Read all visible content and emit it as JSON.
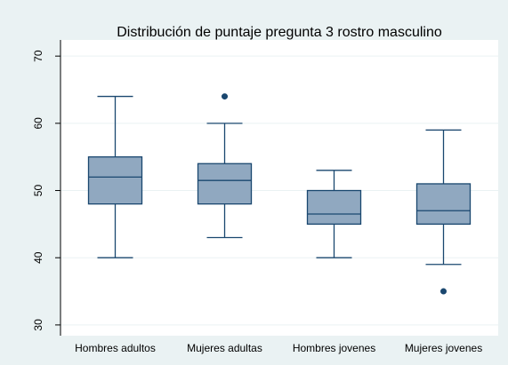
{
  "chart_data": {
    "type": "box",
    "title": "Distribución de puntaje pregunta 3 rostro masculino",
    "categories": [
      "Hombres adultos",
      "Mujeres adultas",
      "Hombres jovenes",
      "Mujeres jovenes"
    ],
    "boxes": [
      {
        "min": 40,
        "q1": 48,
        "median": 52,
        "q3": 55,
        "max": 64,
        "outliers": []
      },
      {
        "min": 43,
        "q1": 48,
        "median": 51.5,
        "q3": 54,
        "max": 60,
        "outliers": [
          64
        ]
      },
      {
        "min": 40,
        "q1": 45,
        "median": 46.5,
        "q3": 50,
        "max": 53,
        "outliers": []
      },
      {
        "min": 39,
        "q1": 45,
        "median": 47,
        "q3": 51,
        "max": 59,
        "outliers": [
          35
        ]
      }
    ],
    "color": "#90a8c0",
    "line_color": "#1a476f",
    "ylim": [
      28.4,
      72.4
    ],
    "yticks": [
      30,
      40,
      50,
      60,
      70
    ],
    "grid": true
  }
}
